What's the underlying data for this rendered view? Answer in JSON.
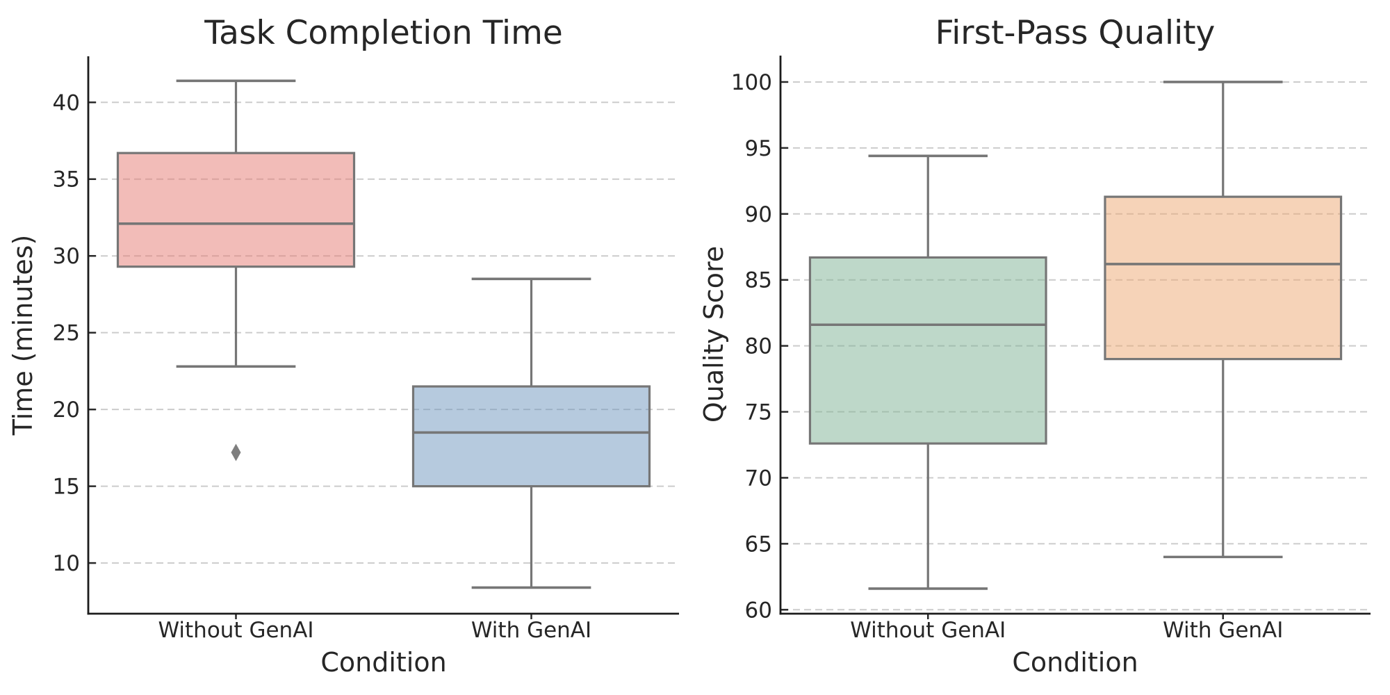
{
  "figure": {
    "background": "#ffffff"
  },
  "colors": {
    "box_line_gray": "#767676",
    "outlier_gray": "#7f7f7f",
    "gridline": "#cccccc",
    "spine": "#1c1c1c",
    "tick": "#2a2a2a",
    "text": "#262626",
    "fill_alpha": 0.5
  },
  "chart_data": [
    {
      "type": "box",
      "title": "Task Completion Time",
      "xlabel": "Condition",
      "ylabel": "Time (minutes)",
      "categories": [
        "Without GenAI",
        "With GenAI"
      ],
      "yticks": [
        10,
        15,
        20,
        25,
        30,
        35,
        40
      ],
      "ylim": [
        6.7,
        43.0
      ],
      "grid": "horizontal-dashed",
      "legend": "none",
      "series": [
        {
          "name": "Without GenAI",
          "whisker_low": 22.8,
          "q1": 29.3,
          "median": 32.1,
          "q3": 36.7,
          "whisker_high": 41.4,
          "outliers": [
            17.2
          ],
          "fill_color": "#E57971"
        },
        {
          "name": "With GenAI",
          "whisker_low": 8.4,
          "q1": 15.0,
          "median": 18.5,
          "q3": 21.5,
          "whisker_high": 28.5,
          "outliers": [],
          "fill_color": "#6D95BD"
        }
      ]
    },
    {
      "type": "box",
      "title": "First-Pass Quality",
      "xlabel": "Condition",
      "ylabel": "Quality Score",
      "categories": [
        "Without GenAI",
        "With GenAI"
      ],
      "yticks": [
        60,
        65,
        70,
        75,
        80,
        85,
        90,
        95,
        100
      ],
      "ylim": [
        59.7,
        102.0
      ],
      "grid": "horizontal-dashed",
      "legend": "none",
      "series": [
        {
          "name": "Without GenAI",
          "whisker_low": 61.6,
          "q1": 72.6,
          "median": 81.6,
          "q3": 86.7,
          "whisker_high": 94.4,
          "outliers": [],
          "fill_color": "#7DB193"
        },
        {
          "name": "With GenAI",
          "whisker_low": 64.0,
          "q1": 79.0,
          "median": 86.2,
          "q3": 91.3,
          "whisker_high": 100.0,
          "outliers": [],
          "fill_color": "#EDA771"
        }
      ]
    }
  ]
}
